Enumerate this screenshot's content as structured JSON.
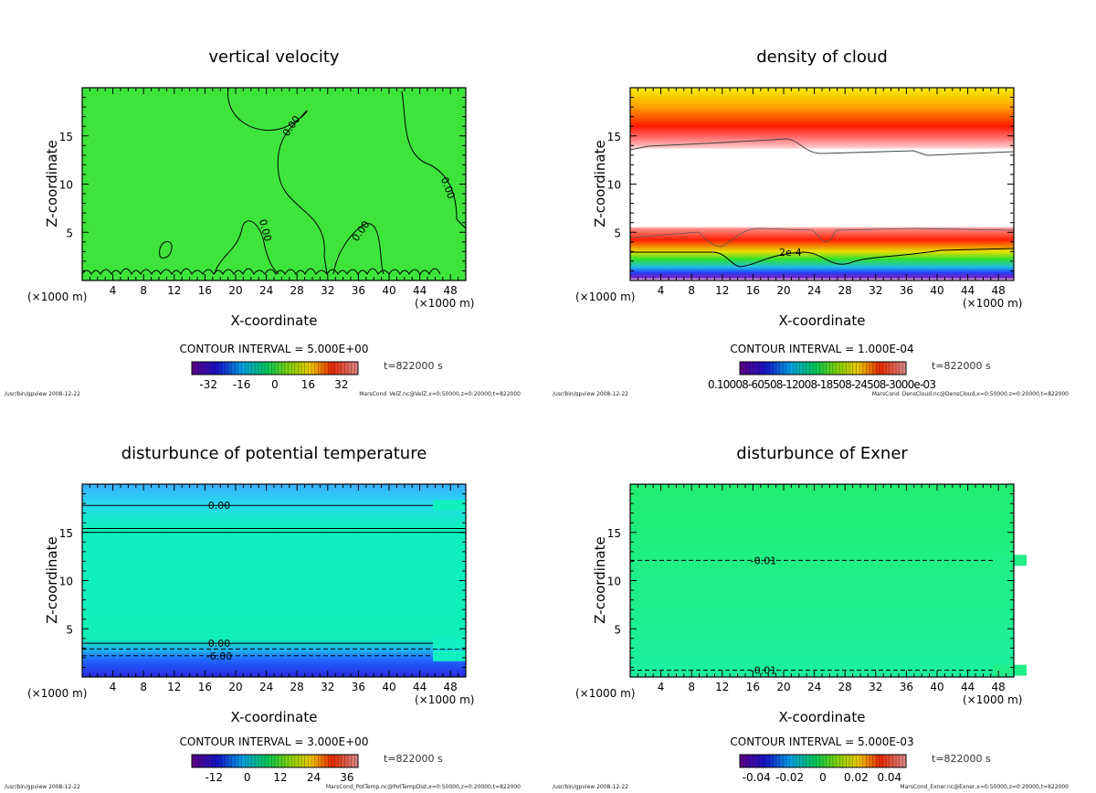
{
  "chart_data": [
    {
      "type": "heatmap",
      "title": "vertical velocity",
      "xlabel": "X-coordinate",
      "ylabel": "Z-coordinate",
      "x_unit_left": "(×1000 m)",
      "x_unit_right": "(×1000 m)",
      "xlim": [
        0,
        50
      ],
      "ylim": [
        0,
        20
      ],
      "xticks": [
        "4",
        "8",
        "12",
        "16",
        "20",
        "24",
        "28",
        "32",
        "36",
        "40",
        "44",
        "48"
      ],
      "yticks": [
        "5",
        "10",
        "15"
      ],
      "contour_interval": "CONTOUR INTERVAL = 5.000E+00",
      "colorbar": {
        "range": [
          -40,
          40
        ],
        "labels": [
          "-32",
          "-16",
          "0",
          "16",
          "32"
        ],
        "values": [
          -32,
          -16,
          0,
          16,
          32
        ]
      },
      "contour_labels": [
        "0.00",
        "0.00",
        "0.00",
        "0.00"
      ],
      "time": "t=822000 s",
      "footer_left": "/usr/bin/gpview  2008-12-22",
      "footer_right": "MarsCond_VelZ.nc@VelZ,x=0:50000,z=0:20000,t=822000",
      "fill_color": "#3ee43c"
    },
    {
      "type": "heatmap",
      "title": "density of cloud",
      "xlabel": "X-coordinate",
      "ylabel": "Z-coordinate",
      "x_unit_left": "(×1000 m)",
      "x_unit_right": "(×1000 m)",
      "xlim": [
        0,
        50
      ],
      "ylim": [
        0,
        20
      ],
      "xticks": [
        "4",
        "8",
        "12",
        "16",
        "20",
        "24",
        "28",
        "32",
        "36",
        "40",
        "44",
        "48"
      ],
      "yticks": [
        "5",
        "10",
        "15"
      ],
      "contour_interval": "CONTOUR INTERVAL = 1.000E-04",
      "colorbar": {
        "range": [
          0,
          1
        ],
        "overprinted_label": "0.10008-60508-12008-18508-24508-3000e-03"
      },
      "contour_labels": [
        "2e-4"
      ],
      "time": "t=822000 s",
      "footer_left": "/usr/bin/gpview  2008-12-22",
      "footer_right": "MarsCond_DensCloud.nc@DensCloud,x=0:50000,z=0:20000,t=822000"
    },
    {
      "type": "heatmap",
      "title": "disturbunce of potential temperature",
      "xlabel": "X-coordinate",
      "ylabel": "Z-coordinate",
      "x_unit_left": "(×1000 m)",
      "x_unit_right": "(×1000 m)",
      "xlim": [
        0,
        50
      ],
      "ylim": [
        0,
        20
      ],
      "xticks": [
        "4",
        "8",
        "12",
        "16",
        "20",
        "24",
        "28",
        "32",
        "36",
        "40",
        "44",
        "48"
      ],
      "yticks": [
        "5",
        "10",
        "15"
      ],
      "contour_interval": "CONTOUR INTERVAL = 3.000E+00",
      "colorbar": {
        "range": [
          -20,
          40
        ],
        "labels": [
          "-12",
          "0",
          "12",
          "24",
          "36"
        ],
        "values": [
          -12,
          0,
          12,
          24,
          36
        ]
      },
      "contours": [
        {
          "z": 17.8,
          "style": "solid",
          "label": "0.00"
        },
        {
          "z": 15.4,
          "style": "solid"
        },
        {
          "z": 15.0,
          "style": "solid"
        },
        {
          "z": 3.5,
          "style": "solid",
          "label": "0.00"
        },
        {
          "z": 2.9,
          "style": "dashed"
        },
        {
          "z": 2.2,
          "style": "dashed",
          "label": "-6.00"
        }
      ],
      "time": "t=822000 s",
      "footer_left": "/usr/bin/gpview  2008-12-22",
      "footer_right": "MarsCond_PotTemp.nc@PotTempDist,x=0:50000,z=0:20000,t=822000"
    },
    {
      "type": "heatmap",
      "title": "disturbunce of Exner",
      "xlabel": "X-coordinate",
      "ylabel": "Z-coordinate",
      "x_unit_left": "(×1000 m)",
      "x_unit_right": "(×1000 m)",
      "xlim": [
        0,
        50
      ],
      "ylim": [
        0,
        20
      ],
      "xticks": [
        "4",
        "8",
        "12",
        "16",
        "20",
        "24",
        "28",
        "32",
        "36",
        "40",
        "44",
        "48"
      ],
      "yticks": [
        "5",
        "10",
        "15"
      ],
      "contour_interval": "CONTOUR INTERVAL = 5.000E-03",
      "colorbar": {
        "range": [
          -0.05,
          0.05
        ],
        "labels": [
          "-0.04",
          "-0.02",
          "0",
          "0.02",
          "0.04"
        ],
        "values": [
          -0.04,
          -0.02,
          0,
          0.02,
          0.04
        ]
      },
      "contours": [
        {
          "z": 12.1,
          "style": "dashed",
          "label": "-0.01"
        },
        {
          "z": 0.7,
          "style": "dashed",
          "label": "-0.01"
        }
      ],
      "time": "t=822000 s",
      "footer_left": "/usr/bin/gpview  2008-12-22",
      "footer_right": "MarsCond_Exner.nc@Exner,x=0:50000,z=0:20000,t=822000"
    }
  ]
}
